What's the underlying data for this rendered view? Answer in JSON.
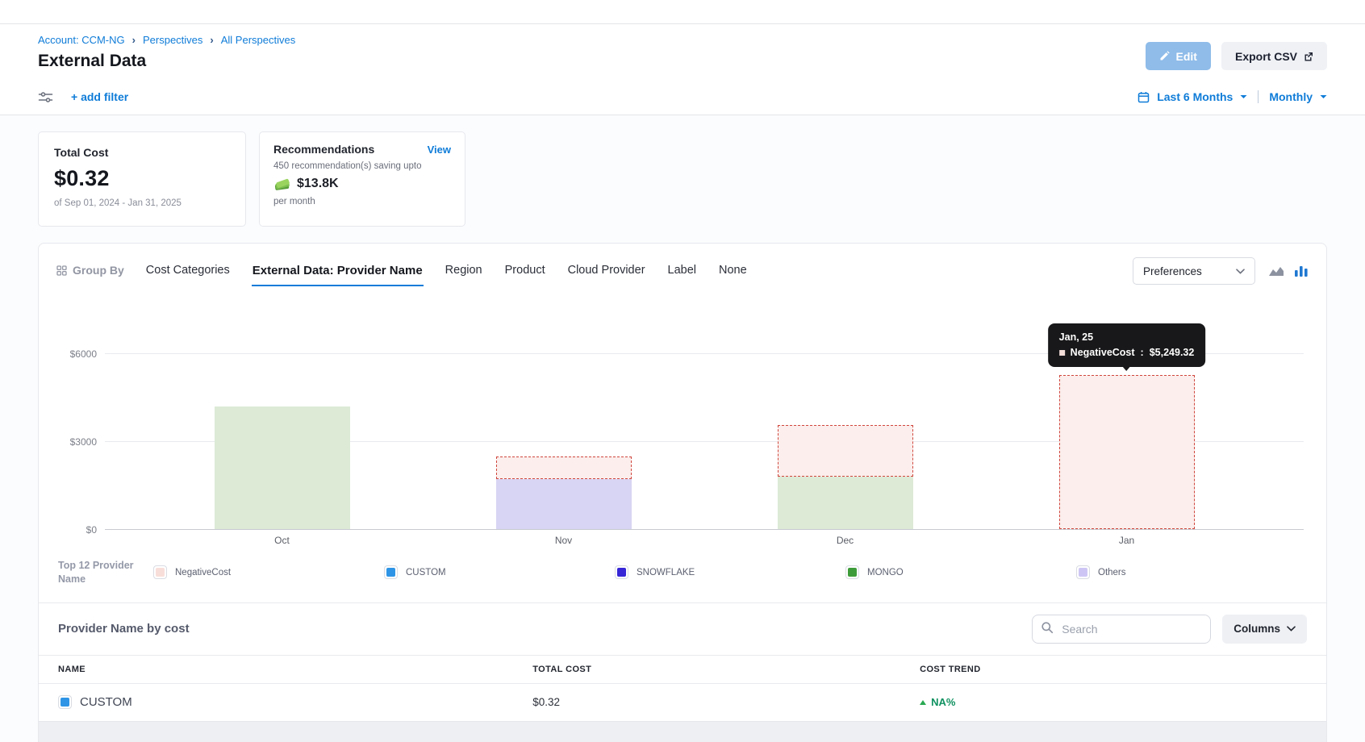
{
  "header": {
    "breadcrumb": {
      "items": [
        "Account: CCM-NG",
        "Perspectives",
        "All Perspectives"
      ]
    },
    "title": "External Data",
    "buttons": {
      "edit": "Edit",
      "export": "Export CSV"
    }
  },
  "filter_bar": {
    "add_filter": "+ add filter",
    "date_range": "Last 6 Months",
    "granularity": "Monthly"
  },
  "summary_cards": {
    "total_cost": {
      "label": "Total Cost",
      "value": "$0.32",
      "period": "of Sep 01, 2024 - Jan 31, 2025"
    },
    "recommendations": {
      "label": "Recommendations",
      "view_link": "View",
      "subtitle": "450 recommendation(s) saving upto",
      "savings": "$13.8K",
      "cadence": "per month"
    }
  },
  "group_by": {
    "label": "Group By",
    "tabs": [
      {
        "label": "Cost Categories",
        "active": false
      },
      {
        "label": "External Data: Provider Name",
        "active": true
      },
      {
        "label": "Region",
        "active": false
      },
      {
        "label": "Product",
        "active": false
      },
      {
        "label": "Cloud Provider",
        "active": false
      },
      {
        "label": "Label",
        "active": false
      },
      {
        "label": "None",
        "active": false
      }
    ],
    "preferences_dropdown": "Preferences"
  },
  "chart_data": {
    "type": "bar",
    "stacked": true,
    "grid": true,
    "legend_position": "bottom",
    "categories": [
      "Oct",
      "Nov",
      "Dec",
      "Jan"
    ],
    "series": [
      {
        "name": "MONGO",
        "values": [
          4190,
          0,
          1790,
          0
        ],
        "fill": "#dcead6",
        "style": "solid"
      },
      {
        "name": "Others",
        "values": [
          0,
          1700,
          0,
          0
        ],
        "fill": "#d8d4f3",
        "style": "solid"
      },
      {
        "name": "NegativeCost",
        "values": [
          0,
          770,
          1770,
          5249.32
        ],
        "fill": "#fbeeec",
        "style": "dashed",
        "border_color": "#d0473e"
      }
    ],
    "y_ticks": [
      {
        "label": "$0",
        "value": 0
      },
      {
        "label": "$3000",
        "value": 3000
      },
      {
        "label": "$6000",
        "value": 6000
      }
    ],
    "ylim": [
      0,
      7400
    ],
    "ylabel": "",
    "xlabel": "",
    "tooltip": {
      "title": "Jan, 25",
      "series": "NegativeCost",
      "separator": " : ",
      "value": "$5,249.32",
      "swatch_color": "#f3ded9"
    }
  },
  "legend": {
    "label": "Top 12 Provider Name",
    "items": [
      {
        "name": "NegativeCost",
        "color": "#f8ded9"
      },
      {
        "name": "CUSTOM",
        "color": "#2e95e6"
      },
      {
        "name": "SNOWFLAKE",
        "color": "#3626d6"
      },
      {
        "name": "MONGO",
        "color": "#3d9c39"
      },
      {
        "name": "Others",
        "color": "#cdc6f4"
      }
    ]
  },
  "table": {
    "title": "Provider Name by cost",
    "search_placeholder": "Search",
    "columns_button": "Columns",
    "headers": [
      "NAME",
      "TOTAL COST",
      "COST TREND"
    ],
    "rows": [
      {
        "name": "CUSTOM",
        "swatch_color": "#2e95e6",
        "total_cost": "$0.32",
        "cost_trend": "NA%",
        "trend_direction": "up"
      }
    ]
  },
  "icons": {
    "edit": "pencil",
    "export": "external-link",
    "filter": "sliders",
    "date": "calendar",
    "dropdown": "chevron-down",
    "group_by": "grid",
    "chart_toggle_inactive": "area-chart",
    "chart_toggle_active": "bar-chart",
    "savings": "money-stack",
    "search": "magnifier",
    "trend_up": "triangle-up"
  },
  "colors": {
    "accent_blue": "#0f7cd8",
    "edit_button_bg": "#8fbce9",
    "negative_dashed_border": "#d0473e",
    "trend_green": "#0f9160",
    "tooltip_bg": "#18181a"
  }
}
